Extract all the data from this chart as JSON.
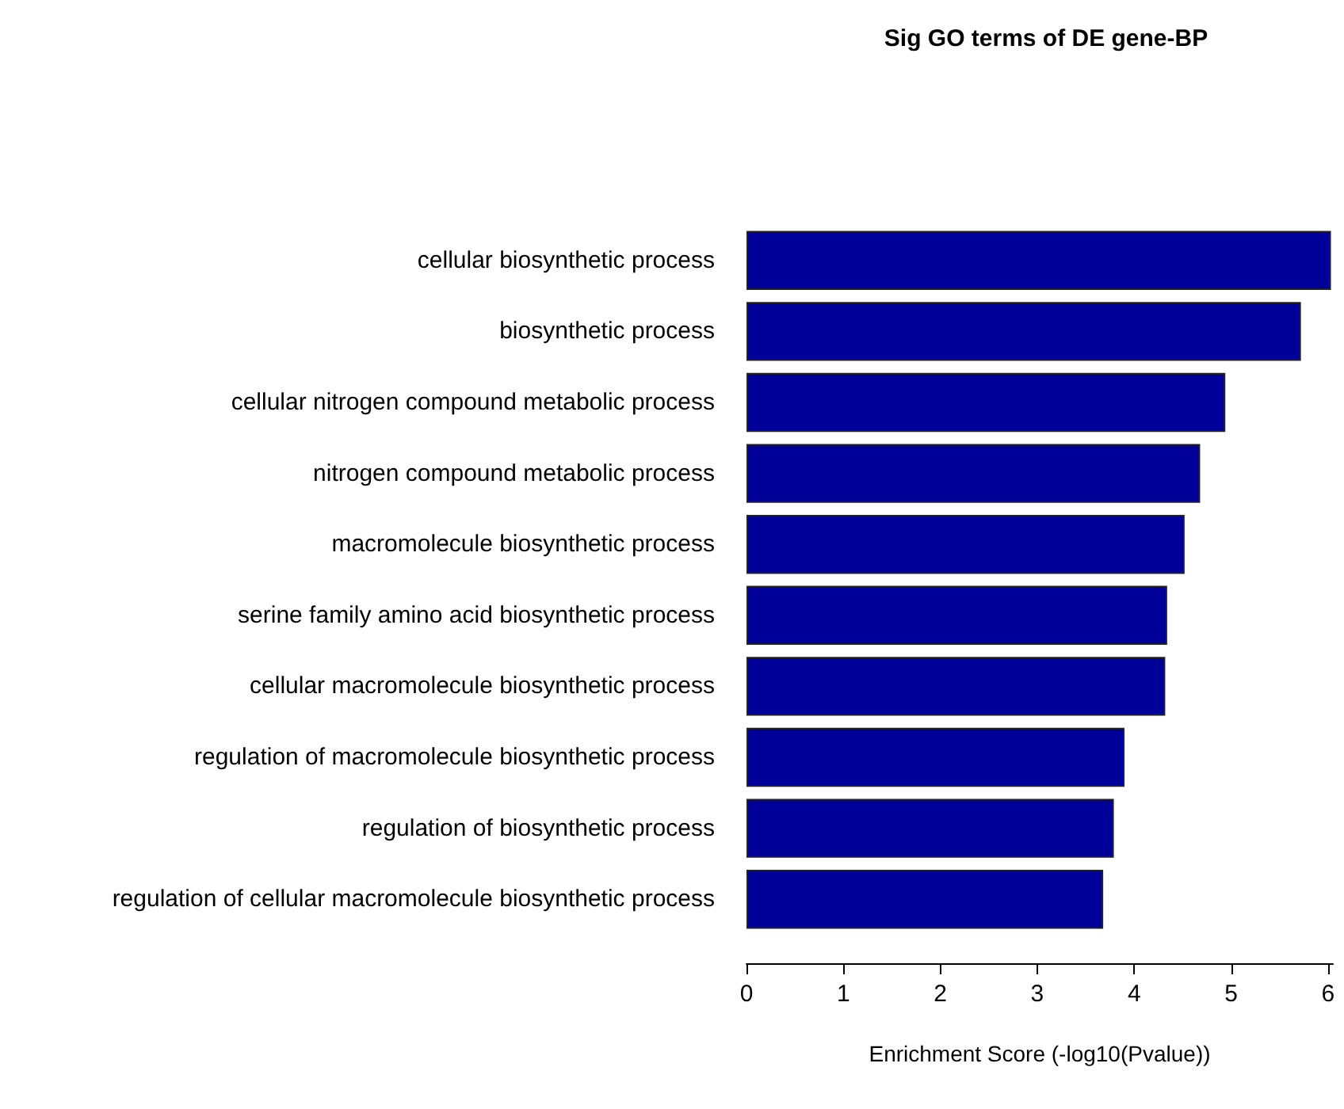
{
  "chart_data": {
    "type": "bar",
    "orientation": "horizontal",
    "title": "Sig GO terms of DE gene-BP",
    "xlabel": "Enrichment Score (-log10(Pvalue))",
    "categories": [
      "cellular biosynthetic process",
      "biosynthetic process",
      "cellular nitrogen compound metabolic process",
      "nitrogen compound metabolic process",
      "macromolecule biosynthetic process",
      "serine family amino acid biosynthetic process",
      "cellular macromolecule biosynthetic process",
      "regulation of macromolecule biosynthetic process",
      "regulation of biosynthetic process",
      "regulation of cellular macromolecule biosynthetic process"
    ],
    "values": [
      6.03,
      5.72,
      4.94,
      4.68,
      4.52,
      4.34,
      4.32,
      3.9,
      3.79,
      3.68
    ],
    "color": "#000099",
    "xlim": [
      0,
      6.05
    ],
    "xticks": [
      0,
      1,
      2,
      3,
      4,
      5,
      6
    ]
  }
}
